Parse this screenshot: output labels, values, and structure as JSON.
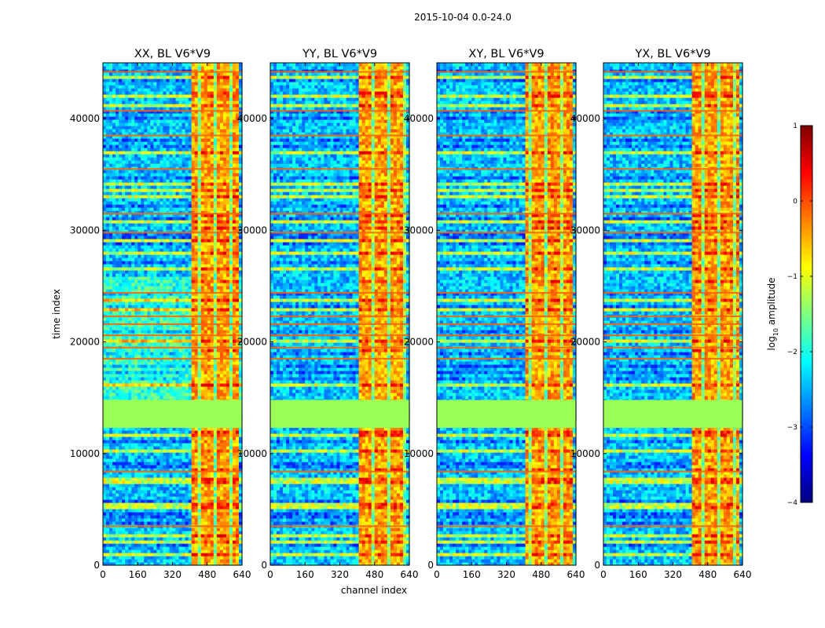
{
  "figure": {
    "suptitle": "2015-10-04 0.0-24.0"
  },
  "colors": {
    "jet": [
      "#00007f",
      "#0000ff",
      "#007fff",
      "#00ffff",
      "#7fff7f",
      "#ffff00",
      "#ff7f00",
      "#ff0000",
      "#7f0000"
    ],
    "fill_band": "#99ff55"
  },
  "chart_data": {
    "type": "heatmap",
    "colormap": "jet",
    "xlabel": "channel index",
    "ylabel": "time index",
    "xlim": [
      0,
      640
    ],
    "ylim": [
      0,
      45000
    ],
    "xticks": [
      0,
      160,
      320,
      480,
      640
    ],
    "yticks": [
      0,
      10000,
      20000,
      30000,
      40000
    ],
    "masked_time_range": [
      12300,
      14800
    ],
    "high_amplitude_channel_range": [
      410,
      620
    ],
    "bright_time_rows": [
      3500,
      8400,
      18500,
      19500,
      20600,
      21600,
      22300,
      24400,
      29800,
      31500,
      35500,
      38500,
      40700,
      44200
    ],
    "panels": [
      {
        "title": "XX, BL V6*V9"
      },
      {
        "title": "YY, BL V6*V9"
      },
      {
        "title": "XY, BL V6*V9"
      },
      {
        "title": "YX, BL V6*V9"
      }
    ],
    "colorbar": {
      "label_main": "log",
      "label_sub": "10",
      "label_rest": " amplitude",
      "vmin": -4,
      "vmax": 1,
      "ticks": [
        1,
        0,
        -1,
        -2,
        -3,
        -4
      ],
      "tick_labels": [
        "1",
        "0",
        "−1",
        "−2",
        "−3",
        "−4"
      ]
    }
  }
}
